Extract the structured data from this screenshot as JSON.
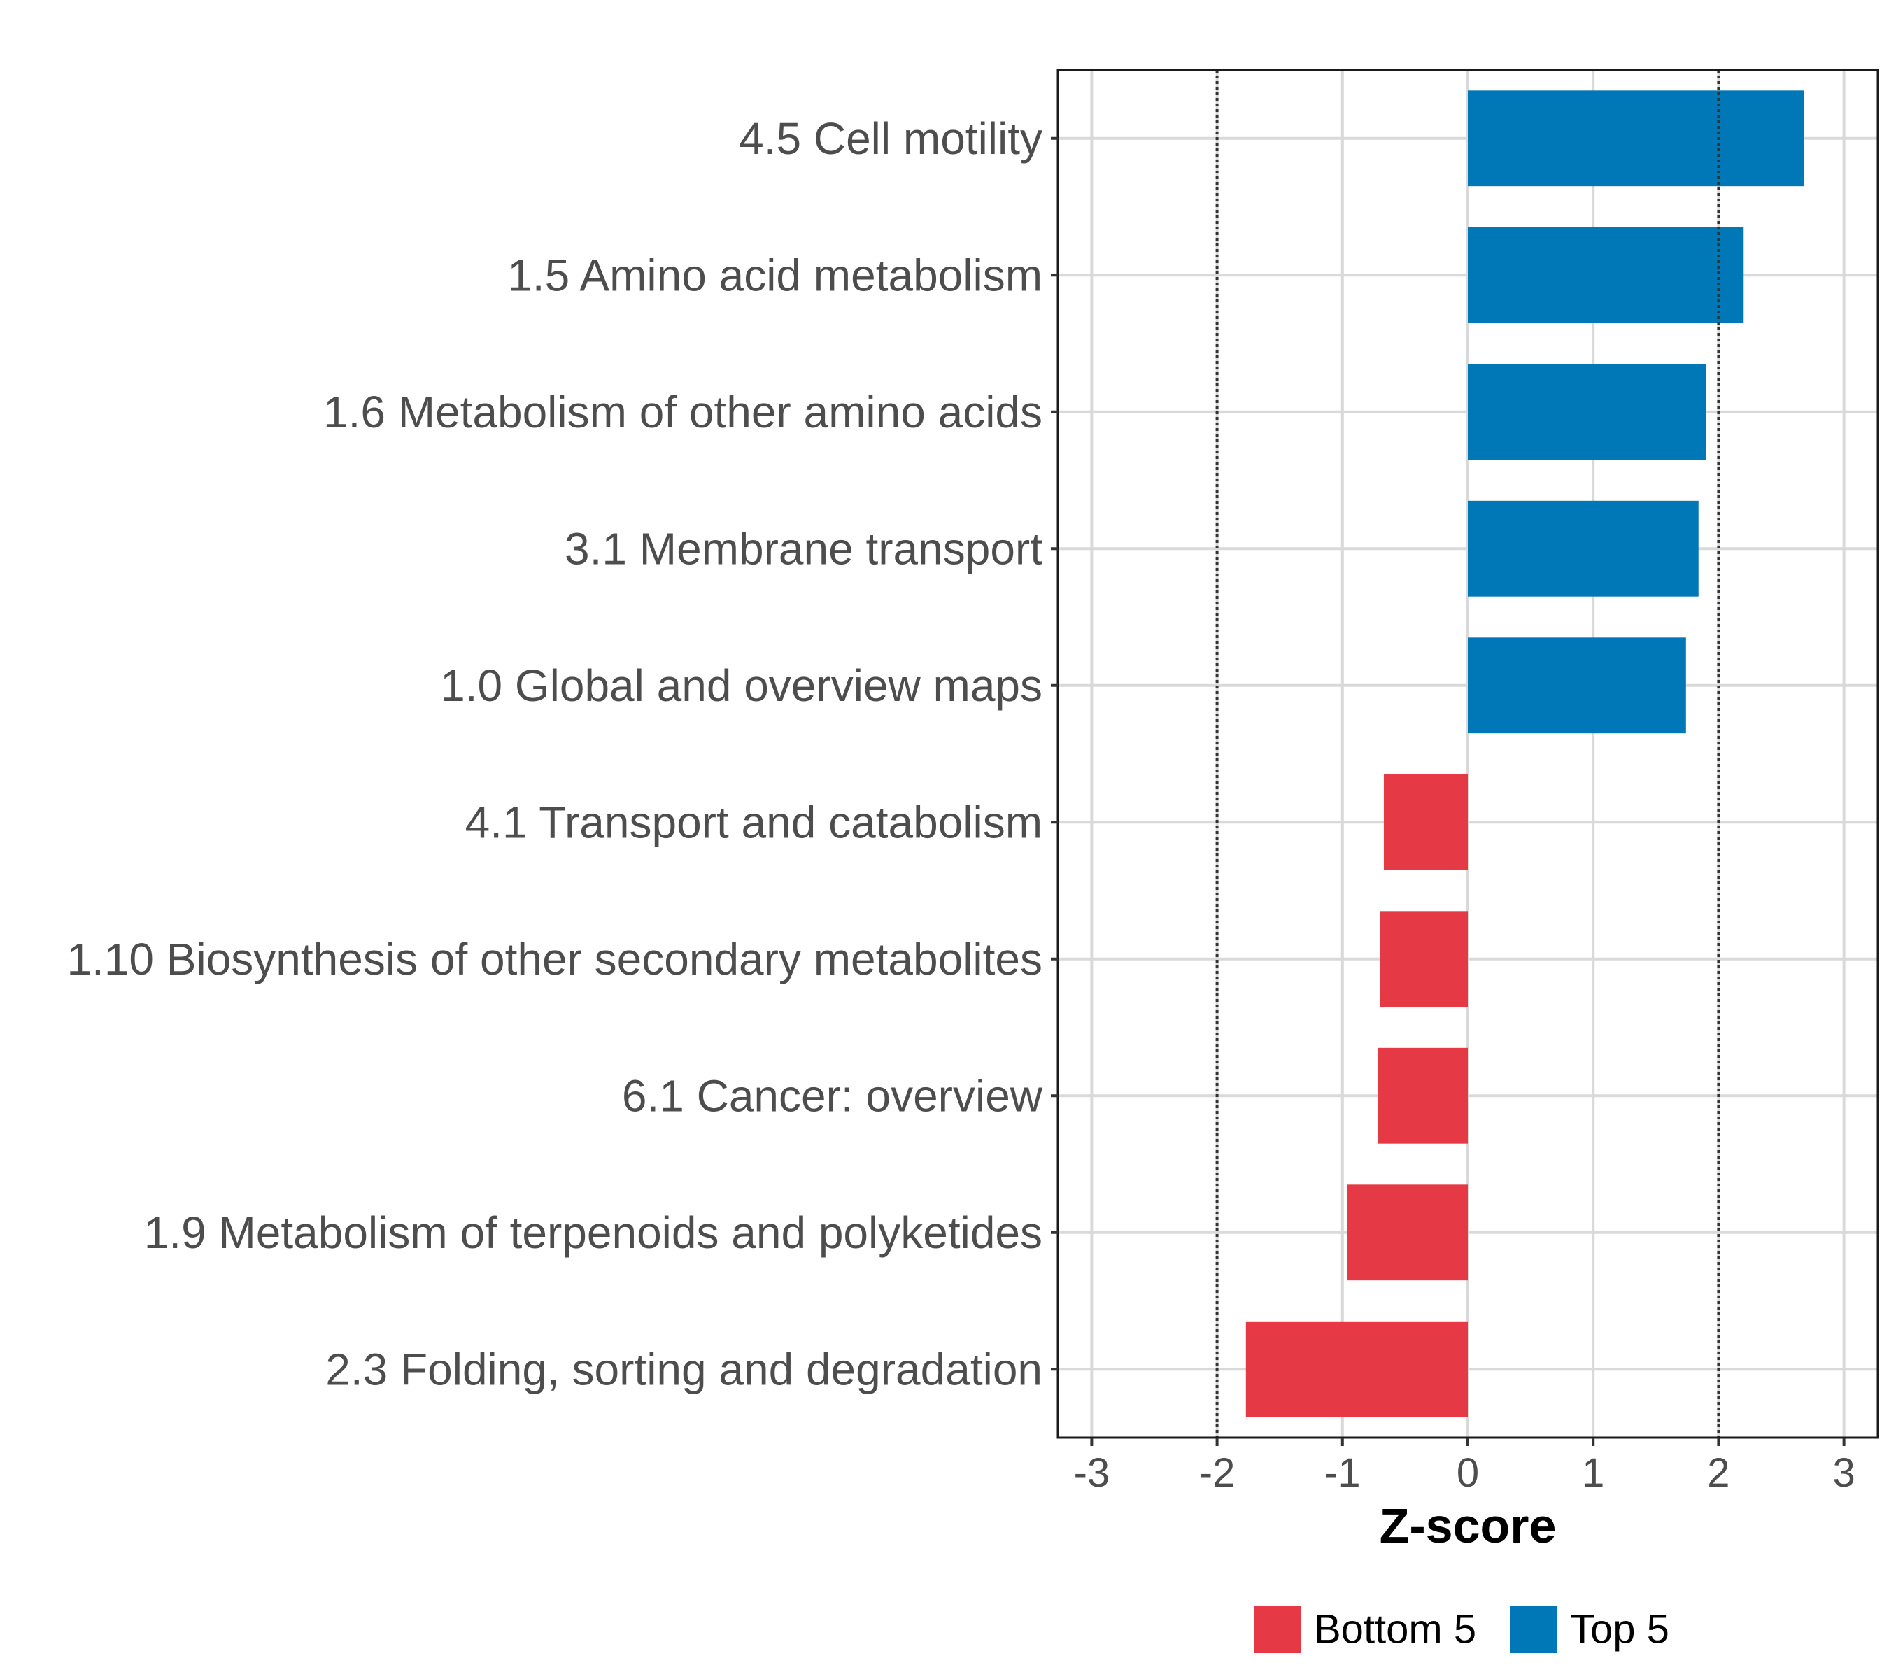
{
  "chart_data": {
    "type": "bar",
    "orientation": "horizontal",
    "categories": [
      "4.5 Cell motility",
      "1.5 Amino acid metabolism",
      "1.6 Metabolism of other amino acids",
      "3.1 Membrane transport",
      "1.0 Global and overview maps",
      "4.1 Transport and catabolism",
      "1.10 Biosynthesis of other secondary metabolites",
      "6.1 Cancer: overview",
      "1.9 Metabolism of terpenoids and polyketides",
      "2.3 Folding, sorting and degradation"
    ],
    "values": [
      2.68,
      2.2,
      1.9,
      1.84,
      1.74,
      -0.67,
      -0.7,
      -0.72,
      -0.96,
      -1.77
    ],
    "groups": [
      "Top 5",
      "Top 5",
      "Top 5",
      "Top 5",
      "Top 5",
      "Bottom 5",
      "Bottom 5",
      "Bottom 5",
      "Bottom 5",
      "Bottom 5"
    ],
    "xlabel": "Z-score",
    "ylabel": "",
    "xlim": [
      -3.27,
      3.27
    ],
    "xticks": [
      -3,
      -2,
      -1,
      0,
      1,
      2,
      3
    ],
    "xtick_labels": [
      "-3",
      "-2",
      "-1",
      "0",
      "1",
      "2",
      "3"
    ],
    "reference_lines": [
      -2,
      2
    ],
    "grid": true,
    "legend": {
      "placement": "bottom",
      "entries": [
        {
          "label": "Bottom 5",
          "color": "#e63946"
        },
        {
          "label": "Top 5",
          "color": "#0077b6"
        }
      ]
    },
    "colors": {
      "Top 5": "#0077b6",
      "Bottom 5": "#e63946"
    }
  }
}
